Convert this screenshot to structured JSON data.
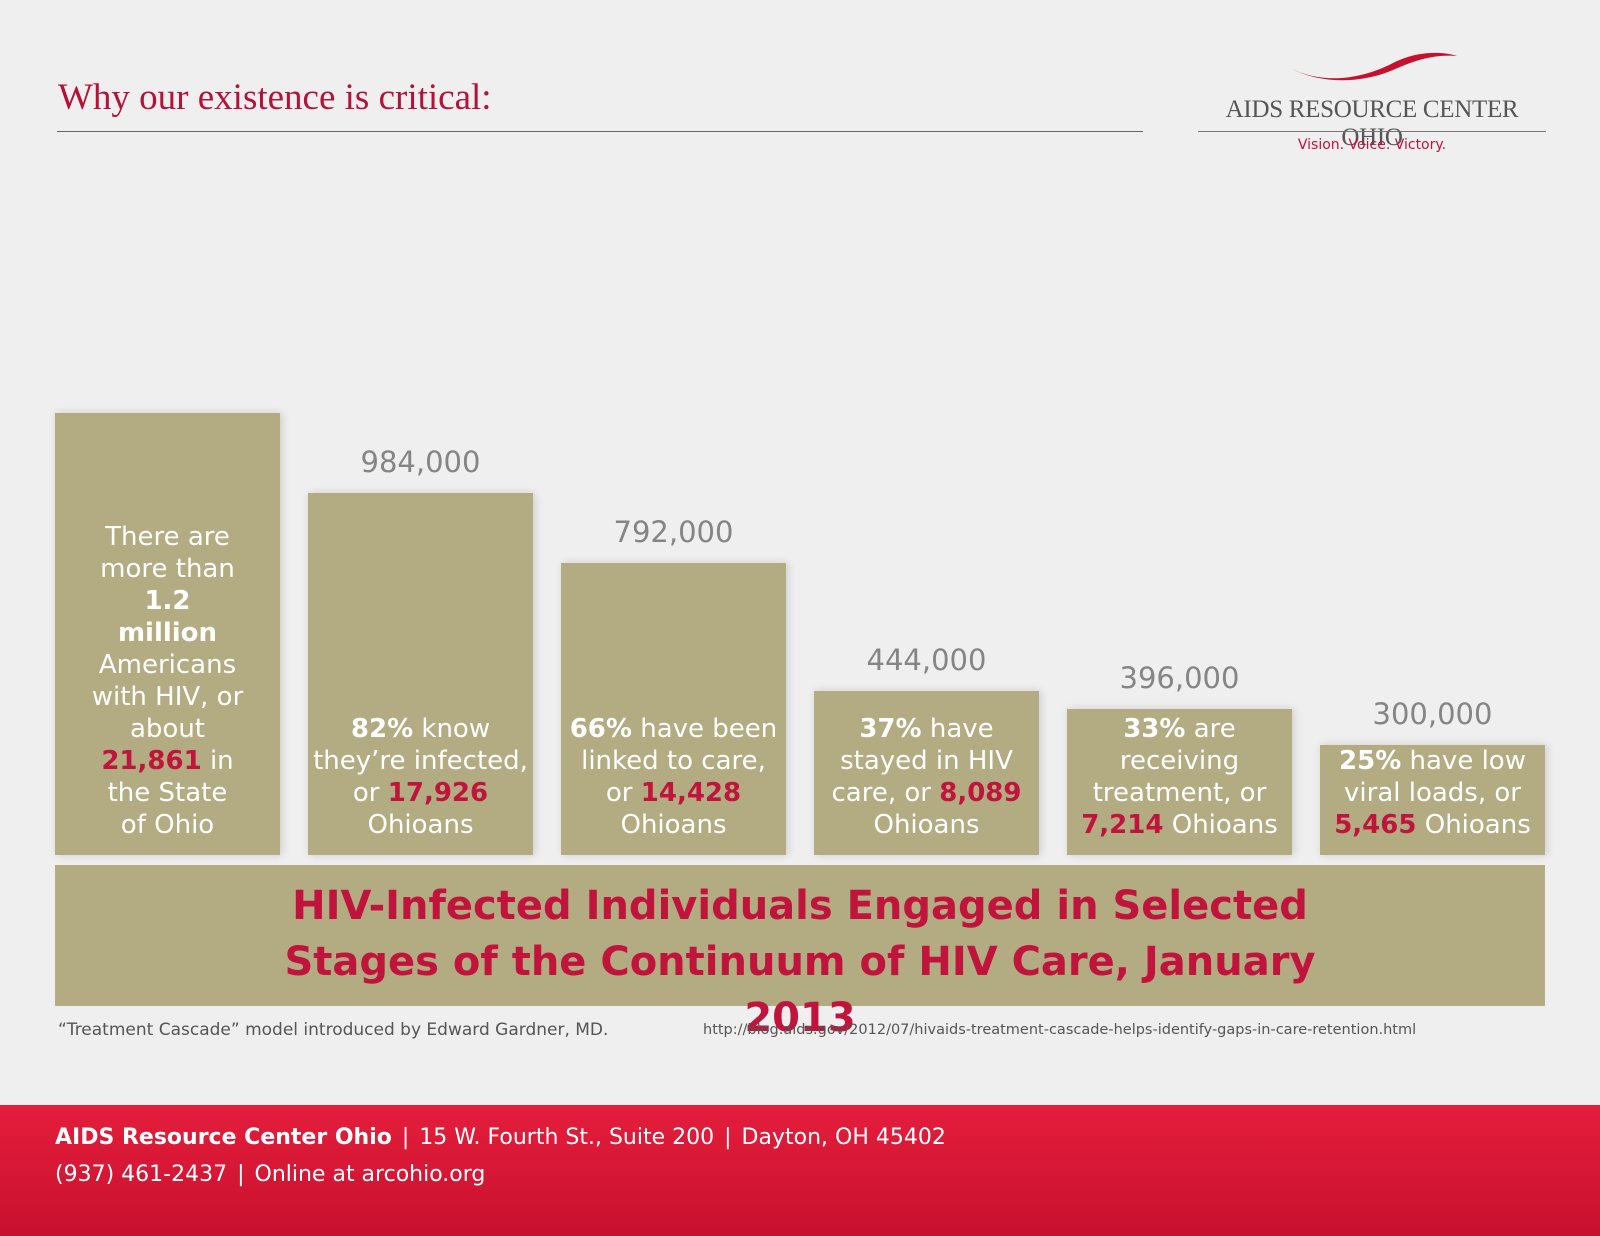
{
  "header": {
    "title": "Why our existence is critical:",
    "logo": "AIDS RESOURCE CENTER OHIO",
    "tagline": "Vision. Voice. Victory."
  },
  "chart_data": {
    "type": "bar",
    "title": "HIV-Infected Individuals Engaged in Selected Stages of the Continuum of HIV Care, January 2013",
    "values": [
      1200000,
      984000,
      792000,
      444000,
      396000,
      300000
    ],
    "value_labels": [
      null,
      "984,000",
      "792,000",
      "444,000",
      "396,000",
      "300,000"
    ],
    "color": "#b3ab82",
    "descriptions": [
      {
        "before": "There are more than",
        "highlight": "1.2 million",
        "middle": "Americans with HIV, or about",
        "ohio": "21,861",
        "after": "in the State of Ohio"
      },
      {
        "highlight": "82%",
        "middle": "know they’re infected, or",
        "ohio": "17,926",
        "after": "Ohioans"
      },
      {
        "highlight": "66%",
        "middle": "have been linked to care, or",
        "ohio": "14,428",
        "after": "Ohioans"
      },
      {
        "highlight": "37%",
        "middle": "have stayed in HIV care, or",
        "ohio": "8,089",
        "after": "Ohioans"
      },
      {
        "highlight": "33%",
        "middle": "are receiving treatment, or",
        "ohio": "7,214",
        "after": "Ohioans"
      },
      {
        "highlight": "25%",
        "middle": "have low viral loads, or",
        "ohio": "5,465",
        "after": "Ohioans"
      }
    ]
  },
  "source": {
    "text": "“Treatment Cascade” model introduced by Edward Gardner, MD.",
    "url": "http://blog.aids.gov/2012/07/hivaids-treatment-cascade-helps-identify-gaps-in-care-retention.html"
  },
  "footer": {
    "organization": "AIDS Resource Center Ohio",
    "address": "15 W. Fourth St., Suite 200",
    "city": "Dayton, OH 45402",
    "phone": "(937) 461-2437",
    "online": "Online at arcohio.org"
  }
}
